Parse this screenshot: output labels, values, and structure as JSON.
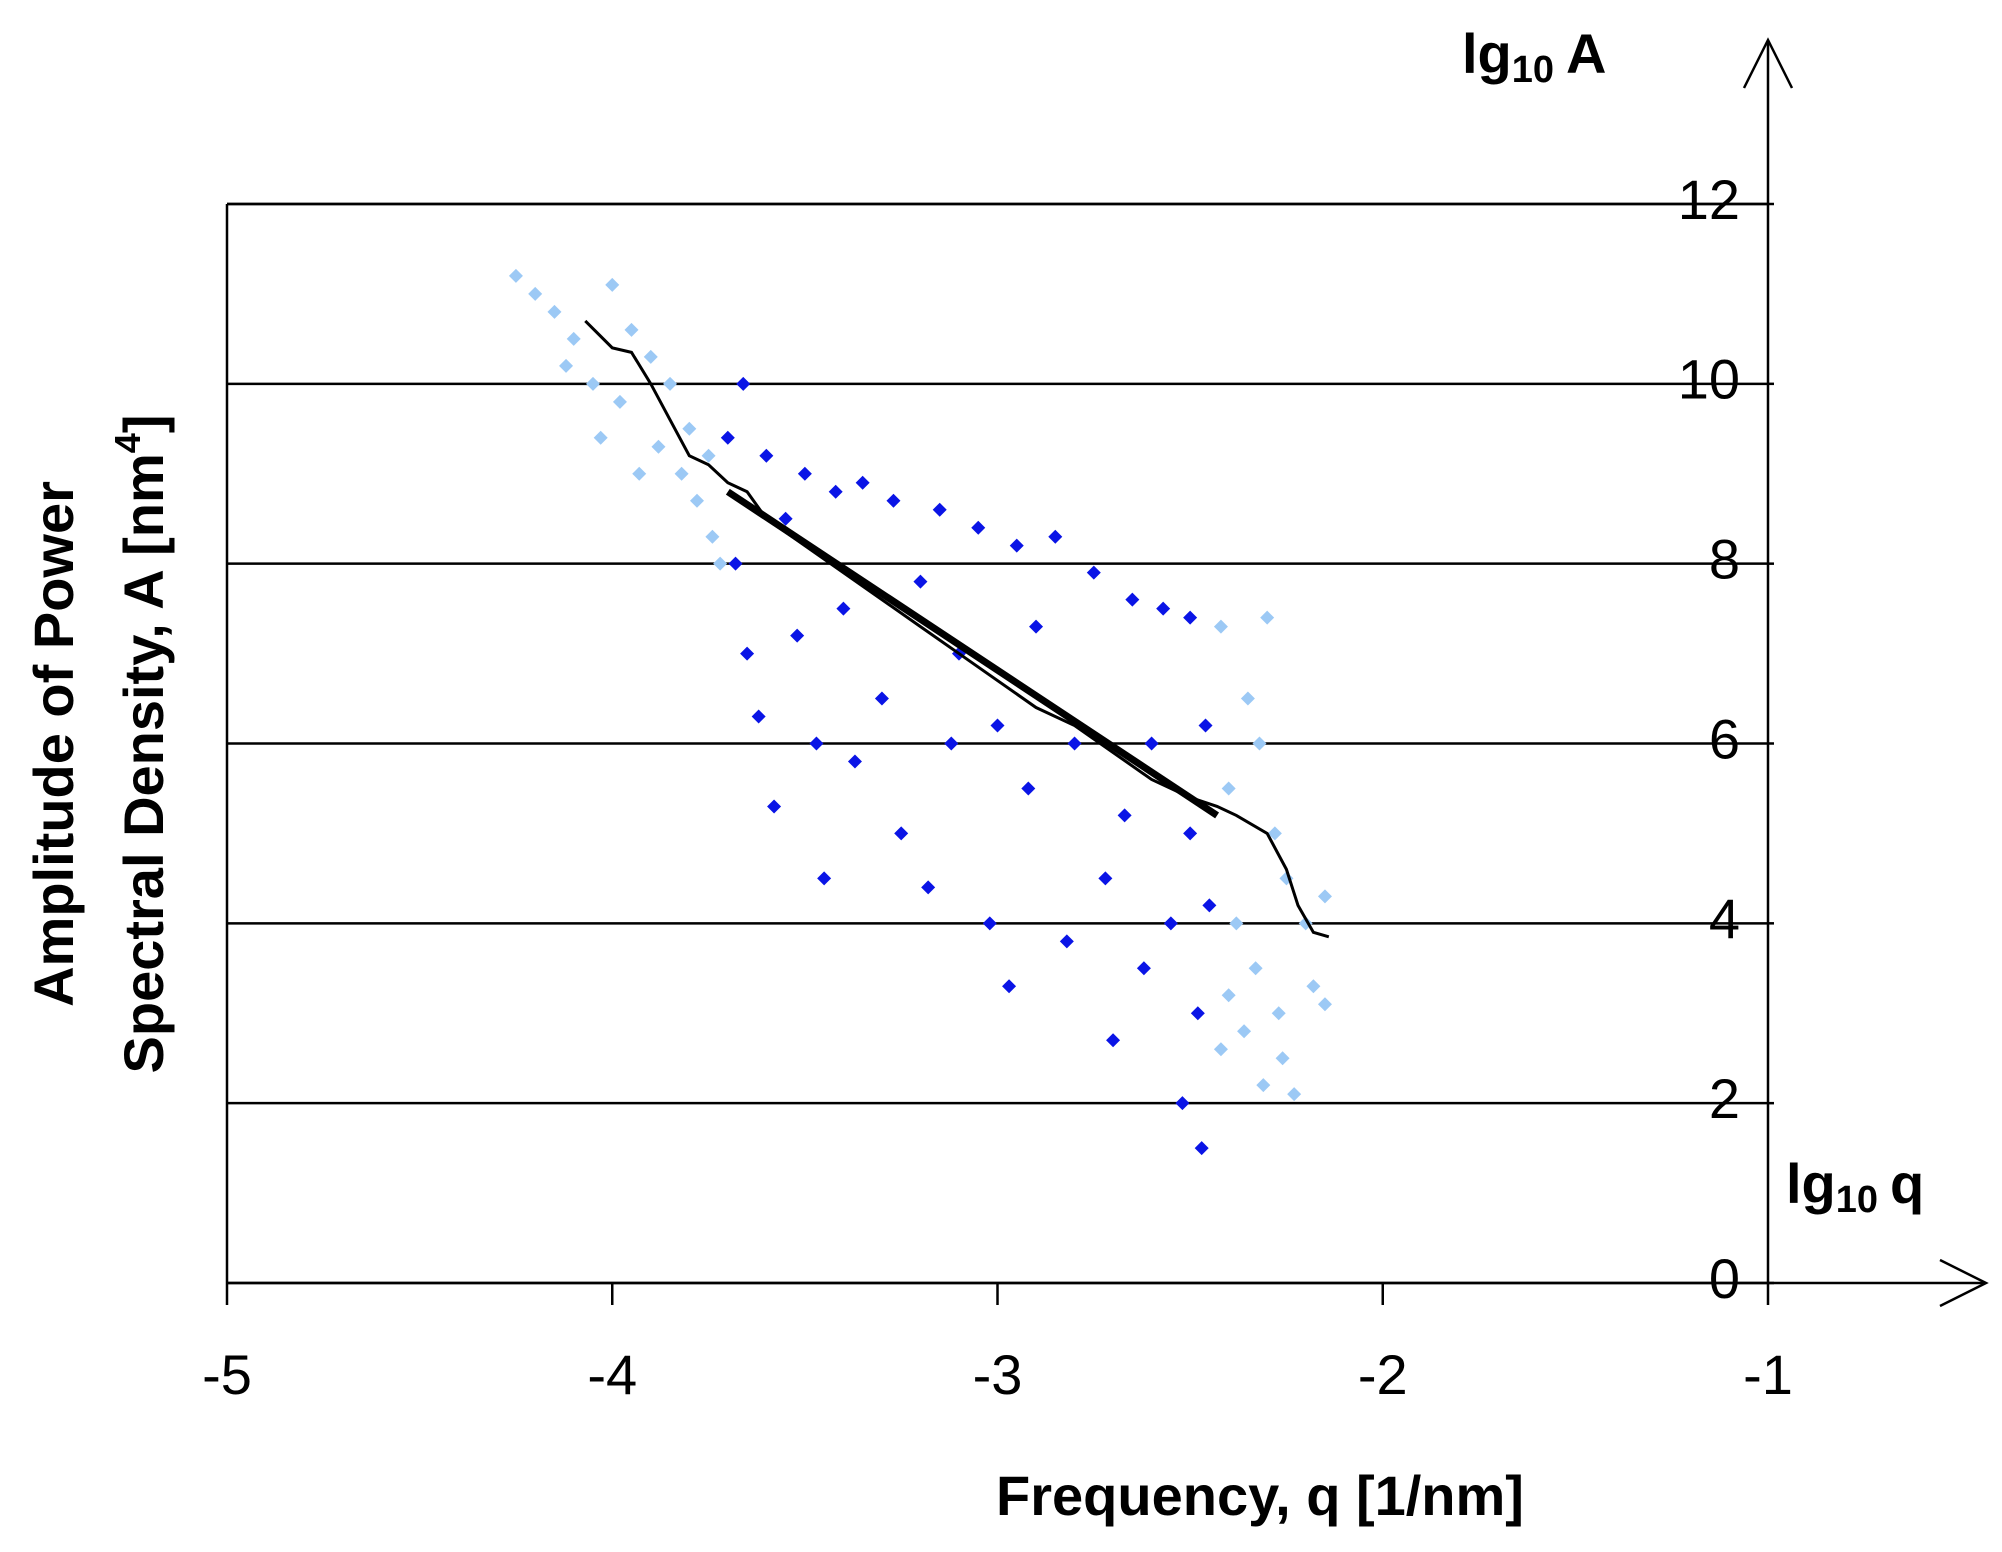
{
  "chart_data": {
    "type": "scatter",
    "y_title_lines": [
      {
        "text": "Amplitude of  Power"
      },
      {
        "text": "Spectral Density,  A  [nm",
        "sup": "4",
        "tail": "]"
      }
    ],
    "x_title": "Frequency,  q  [1/nm]",
    "y_arrow_label": {
      "base": "lg",
      "sub": "10",
      "var": "A"
    },
    "x_arrow_label": {
      "base": "lg",
      "sub": "10",
      "var": "q"
    },
    "xlim": [
      -5,
      -1
    ],
    "xticks": [
      -5,
      -4,
      -3,
      -2,
      -1
    ],
    "ylim": [
      0,
      12
    ],
    "yticks": [
      0,
      2,
      4,
      6,
      8,
      10,
      12
    ],
    "grid": true,
    "series": [
      {
        "kind": "points",
        "color": "#9cc9f5",
        "x": [
          -4.25,
          -4.2,
          -4.15,
          -4.1,
          -4.05,
          -4.0,
          -3.98,
          -3.95,
          -3.9,
          -3.88,
          -3.85,
          -3.8,
          -3.78,
          -3.75,
          -3.72,
          -4.12,
          -4.03,
          -3.93,
          -3.82,
          -3.74,
          -2.42,
          -2.4,
          -2.38,
          -2.36,
          -2.35,
          -2.33,
          -2.31,
          -2.3,
          -2.28,
          -2.27,
          -2.25,
          -2.23,
          -2.2,
          -2.18,
          -2.15,
          -2.15,
          -2.4,
          -2.32,
          -2.26,
          -2.42
        ],
        "values": [
          11.2,
          11.0,
          10.8,
          10.5,
          10.0,
          11.1,
          9.8,
          10.6,
          10.3,
          9.3,
          10.0,
          9.5,
          8.7,
          9.2,
          8.0,
          10.2,
          9.4,
          9.0,
          9.0,
          8.3,
          7.3,
          5.5,
          4.0,
          2.8,
          6.5,
          3.5,
          2.2,
          7.4,
          5.0,
          3.0,
          4.5,
          2.1,
          4.0,
          3.3,
          4.3,
          3.1,
          3.2,
          6.0,
          2.5,
          2.6
        ]
      },
      {
        "kind": "points",
        "color": "#0a14e6",
        "x": [
          -3.7,
          -3.68,
          -3.66,
          -3.65,
          -3.62,
          -3.6,
          -3.58,
          -3.55,
          -3.52,
          -3.5,
          -3.47,
          -3.45,
          -3.42,
          -3.4,
          -3.37,
          -3.35,
          -3.3,
          -3.27,
          -3.25,
          -3.2,
          -3.18,
          -3.15,
          -3.12,
          -3.1,
          -3.05,
          -3.02,
          -3.0,
          -2.97,
          -2.95,
          -2.92,
          -2.9,
          -2.85,
          -2.82,
          -2.8,
          -2.75,
          -2.72,
          -2.7,
          -2.67,
          -2.65,
          -2.62,
          -2.6,
          -2.57,
          -2.55,
          -2.52,
          -2.5,
          -2.5,
          -2.48,
          -2.47,
          -2.46,
          -2.45
        ],
        "values": [
          9.4,
          8.0,
          10.0,
          7.0,
          6.3,
          9.2,
          5.3,
          8.5,
          7.2,
          9.0,
          6.0,
          4.5,
          8.8,
          7.5,
          5.8,
          8.9,
          6.5,
          8.7,
          5.0,
          7.8,
          4.4,
          8.6,
          6.0,
          7.0,
          8.4,
          4.0,
          6.2,
          3.3,
          8.2,
          5.5,
          7.3,
          8.3,
          3.8,
          6.0,
          7.9,
          4.5,
          2.7,
          5.2,
          7.6,
          3.5,
          6.0,
          7.5,
          4.0,
          2.0,
          7.4,
          5.0,
          3.0,
          1.5,
          6.2,
          4.2
        ]
      },
      {
        "kind": "line",
        "color": "#000000",
        "width": 3,
        "x": [
          -4.07,
          -4.0,
          -3.95,
          -3.9,
          -3.85,
          -3.8,
          -3.75,
          -3.7,
          -3.65,
          -3.6,
          -3.5,
          -3.4,
          -3.3,
          -3.2,
          -3.1,
          -3.0,
          -2.9,
          -2.8,
          -2.7,
          -2.6,
          -2.5,
          -2.43,
          -2.38,
          -2.3,
          -2.25,
          -2.22,
          -2.18,
          -2.14
        ],
        "values": [
          10.7,
          10.4,
          10.35,
          10.0,
          9.6,
          9.2,
          9.1,
          8.9,
          8.8,
          8.5,
          8.2,
          7.9,
          7.6,
          7.3,
          7.0,
          6.7,
          6.4,
          6.2,
          5.9,
          5.6,
          5.4,
          5.3,
          5.2,
          5.0,
          4.6,
          4.2,
          3.9,
          3.85
        ]
      },
      {
        "kind": "line",
        "color": "#000000",
        "width": 7,
        "x": [
          -3.7,
          -2.43
        ],
        "values": [
          8.8,
          5.2
        ]
      }
    ]
  }
}
